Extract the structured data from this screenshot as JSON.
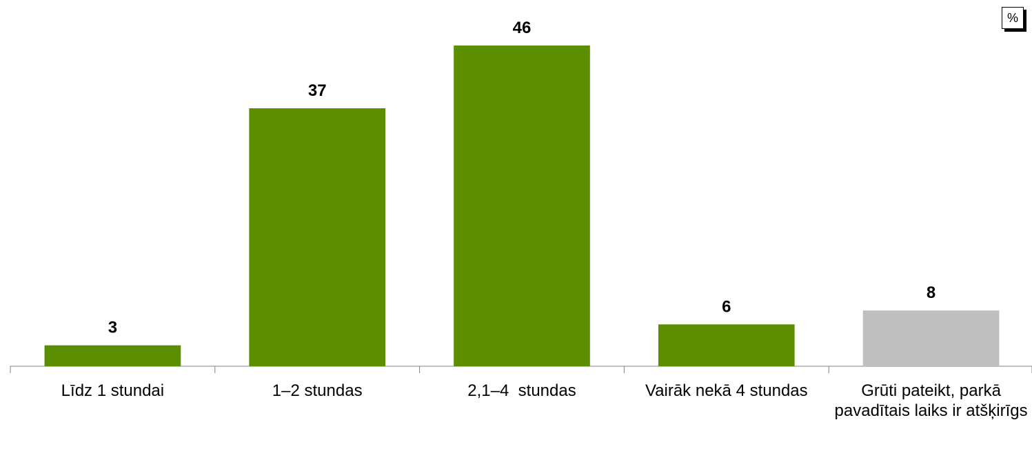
{
  "chart_data": {
    "type": "bar",
    "unit_label": "%",
    "categories": [
      "Līdz 1 stundai",
      "1–2 stundas",
      "2,1–4  stundas",
      "Vairāk nekā 4 stundas",
      "Grūti pateikt, parkā pavadītais laiks ir atšķirīgs"
    ],
    "values": [
      3,
      37,
      46,
      6,
      8
    ],
    "colors": [
      "#5b8f00",
      "#5b8f00",
      "#5b8f00",
      "#5b8f00",
      "#bfbfbf"
    ]
  }
}
